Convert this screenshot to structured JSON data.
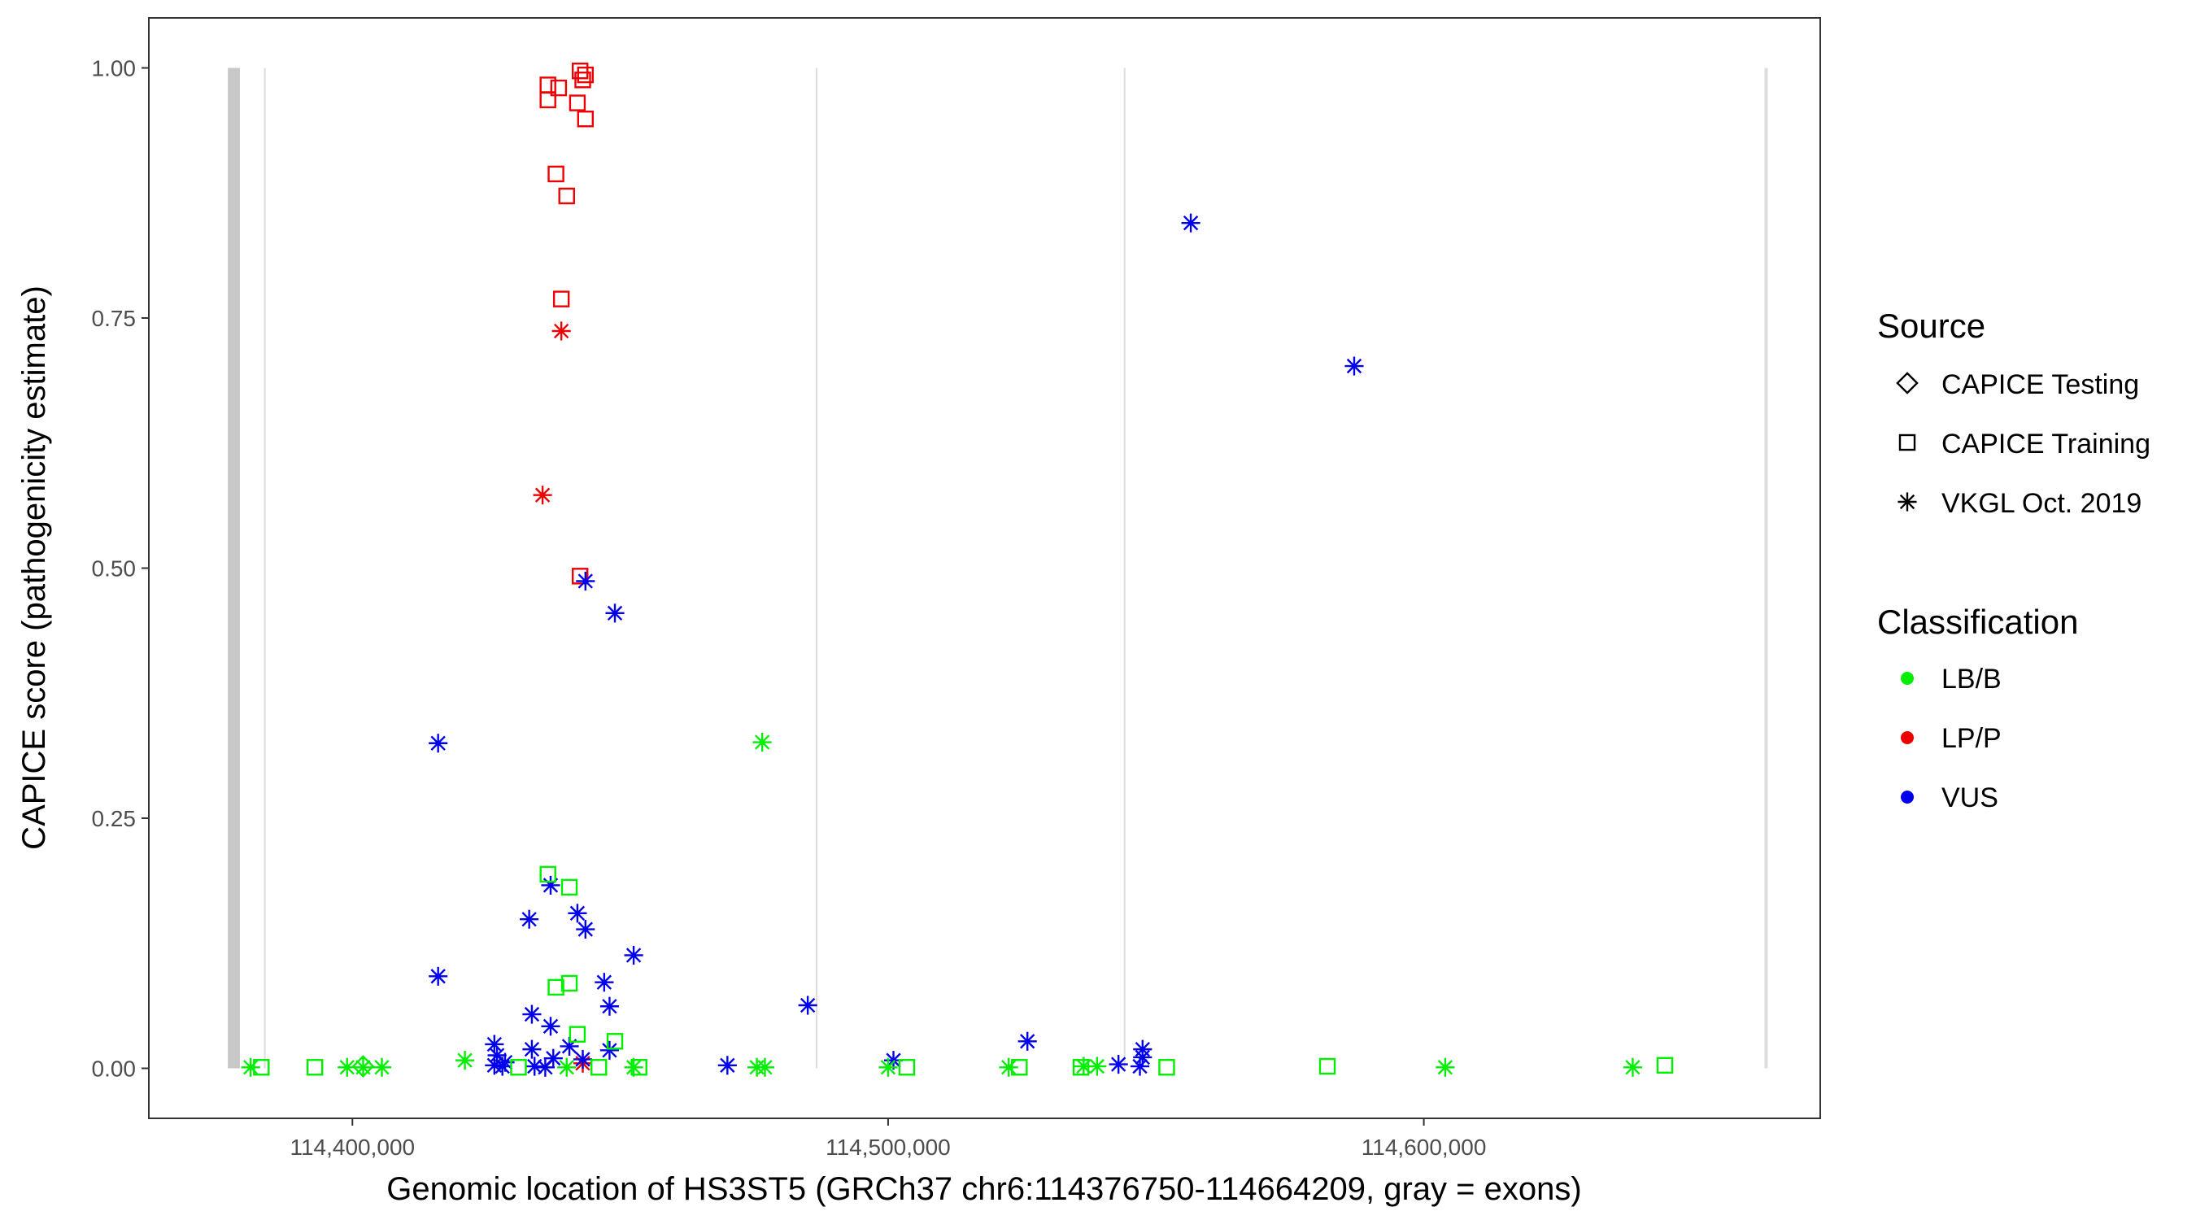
{
  "chart_data": {
    "type": "scatter",
    "xlabel": "Genomic location of HS3ST5 (GRCh37 chr6:114376750-114664209, gray = exons)",
    "ylabel": "CAPICE score (pathogenicity estimate)",
    "xlim": [
      114362000,
      114674000
    ],
    "ylim": [
      -0.05,
      1.05
    ],
    "x_ticks": [
      114400000,
      114500000,
      114600000
    ],
    "x_tick_labels": [
      "114,400,000",
      "114,500,000",
      "114,600,000"
    ],
    "y_ticks": [
      0.0,
      0.25,
      0.5,
      0.75,
      1.0
    ],
    "y_tick_labels": [
      "0.00",
      "0.25",
      "0.50",
      "0.75",
      "1.00"
    ],
    "grid": false,
    "legend_position": "right",
    "exons": [
      [
        114376750,
        114379000
      ],
      [
        114383500,
        114383800
      ],
      [
        114486500,
        114486800
      ],
      [
        114544000,
        114544300
      ],
      [
        114663600,
        114664209
      ]
    ],
    "legend": {
      "source_title": "Source",
      "source_items": [
        {
          "label": "CAPICE Testing",
          "shape": "diamond"
        },
        {
          "label": "CAPICE Training",
          "shape": "square"
        },
        {
          "label": "VKGL Oct. 2019",
          "shape": "star"
        }
      ],
      "class_title": "Classification",
      "class_items": [
        {
          "label": "LB/B",
          "color": "#00ee00"
        },
        {
          "label": "LP/P",
          "color": "#ee0000"
        },
        {
          "label": "VUS",
          "color": "#0000ee"
        }
      ]
    },
    "colors": {
      "LB/B": "#00ee00",
      "LP/P": "#ee0000",
      "VUS": "#0000ee"
    },
    "points": [
      {
        "x": 114436500,
        "y": 0.983,
        "source": "square",
        "cls": "LP/P"
      },
      {
        "x": 114438500,
        "y": 0.98,
        "source": "square",
        "cls": "LP/P"
      },
      {
        "x": 114436500,
        "y": 0.968,
        "source": "square",
        "cls": "LP/P"
      },
      {
        "x": 114442500,
        "y": 0.997,
        "source": "square",
        "cls": "LP/P"
      },
      {
        "x": 114443500,
        "y": 0.993,
        "source": "square",
        "cls": "LP/P"
      },
      {
        "x": 114443000,
        "y": 0.988,
        "source": "square",
        "cls": "LP/P"
      },
      {
        "x": 114442000,
        "y": 0.965,
        "source": "square",
        "cls": "LP/P"
      },
      {
        "x": 114443500,
        "y": 0.949,
        "source": "square",
        "cls": "LP/P"
      },
      {
        "x": 114438000,
        "y": 0.894,
        "source": "square",
        "cls": "LP/P"
      },
      {
        "x": 114440000,
        "y": 0.872,
        "source": "square",
        "cls": "LP/P"
      },
      {
        "x": 114439000,
        "y": 0.769,
        "source": "square",
        "cls": "LP/P"
      },
      {
        "x": 114442500,
        "y": 0.492,
        "source": "square",
        "cls": "LP/P"
      },
      {
        "x": 114439000,
        "y": 0.737,
        "source": "star",
        "cls": "LP/P"
      },
      {
        "x": 114435500,
        "y": 0.573,
        "source": "star",
        "cls": "LP/P"
      },
      {
        "x": 114443000,
        "y": 0.005,
        "source": "star",
        "cls": "LP/P"
      },
      {
        "x": 114556500,
        "y": 0.845,
        "source": "star",
        "cls": "VUS"
      },
      {
        "x": 114587000,
        "y": 0.702,
        "source": "star",
        "cls": "VUS"
      },
      {
        "x": 114443500,
        "y": 0.487,
        "source": "star",
        "cls": "VUS"
      },
      {
        "x": 114449000,
        "y": 0.455,
        "source": "star",
        "cls": "VUS"
      },
      {
        "x": 114416000,
        "y": 0.325,
        "source": "star",
        "cls": "VUS"
      },
      {
        "x": 114437000,
        "y": 0.183,
        "source": "star",
        "cls": "VUS"
      },
      {
        "x": 114442000,
        "y": 0.155,
        "source": "star",
        "cls": "VUS"
      },
      {
        "x": 114433000,
        "y": 0.149,
        "source": "star",
        "cls": "VUS"
      },
      {
        "x": 114443500,
        "y": 0.139,
        "source": "star",
        "cls": "VUS"
      },
      {
        "x": 114452500,
        "y": 0.113,
        "source": "star",
        "cls": "VUS"
      },
      {
        "x": 114416000,
        "y": 0.092,
        "source": "star",
        "cls": "VUS"
      },
      {
        "x": 114447000,
        "y": 0.086,
        "source": "star",
        "cls": "VUS"
      },
      {
        "x": 114485000,
        "y": 0.063,
        "source": "star",
        "cls": "VUS"
      },
      {
        "x": 114448000,
        "y": 0.062,
        "source": "star",
        "cls": "VUS"
      },
      {
        "x": 114433500,
        "y": 0.054,
        "source": "star",
        "cls": "VUS"
      },
      {
        "x": 114437000,
        "y": 0.042,
        "source": "star",
        "cls": "VUS"
      },
      {
        "x": 114426500,
        "y": 0.024,
        "source": "star",
        "cls": "VUS"
      },
      {
        "x": 114526000,
        "y": 0.027,
        "source": "star",
        "cls": "VUS"
      },
      {
        "x": 114440500,
        "y": 0.022,
        "source": "star",
        "cls": "VUS"
      },
      {
        "x": 114433500,
        "y": 0.019,
        "source": "star",
        "cls": "VUS"
      },
      {
        "x": 114547500,
        "y": 0.019,
        "source": "star",
        "cls": "VUS"
      },
      {
        "x": 114448000,
        "y": 0.018,
        "source": "star",
        "cls": "VUS"
      },
      {
        "x": 114427000,
        "y": 0.013,
        "source": "star",
        "cls": "VUS"
      },
      {
        "x": 114547500,
        "y": 0.011,
        "source": "star",
        "cls": "VUS"
      },
      {
        "x": 114437500,
        "y": 0.01,
        "source": "star",
        "cls": "VUS"
      },
      {
        "x": 114443000,
        "y": 0.009,
        "source": "star",
        "cls": "VUS"
      },
      {
        "x": 114501000,
        "y": 0.008,
        "source": "star",
        "cls": "VUS"
      },
      {
        "x": 114428500,
        "y": 0.006,
        "source": "star",
        "cls": "VUS"
      },
      {
        "x": 114543000,
        "y": 0.004,
        "source": "star",
        "cls": "VUS"
      },
      {
        "x": 114426500,
        "y": 0.003,
        "source": "star",
        "cls": "VUS"
      },
      {
        "x": 114470000,
        "y": 0.003,
        "source": "star",
        "cls": "VUS"
      },
      {
        "x": 114428000,
        "y": 0.002,
        "source": "star",
        "cls": "VUS"
      },
      {
        "x": 114434000,
        "y": 0.002,
        "source": "star",
        "cls": "VUS"
      },
      {
        "x": 114547000,
        "y": 0.002,
        "source": "star",
        "cls": "VUS"
      },
      {
        "x": 114436000,
        "y": 0.001,
        "source": "star",
        "cls": "VUS"
      },
      {
        "x": 114476500,
        "y": 0.326,
        "source": "star",
        "cls": "LB/B"
      },
      {
        "x": 114421000,
        "y": 0.008,
        "source": "star",
        "cls": "LB/B"
      },
      {
        "x": 114381000,
        "y": 0.001,
        "source": "star",
        "cls": "LB/B"
      },
      {
        "x": 114399000,
        "y": 0.001,
        "source": "star",
        "cls": "LB/B"
      },
      {
        "x": 114402000,
        "y": 0.001,
        "source": "star",
        "cls": "LB/B"
      },
      {
        "x": 114405500,
        "y": 0.001,
        "source": "star",
        "cls": "LB/B"
      },
      {
        "x": 114440000,
        "y": 0.001,
        "source": "star",
        "cls": "LB/B"
      },
      {
        "x": 114452500,
        "y": 0.001,
        "source": "star",
        "cls": "LB/B"
      },
      {
        "x": 114475500,
        "y": 0.001,
        "source": "star",
        "cls": "LB/B"
      },
      {
        "x": 114477000,
        "y": 0.001,
        "source": "star",
        "cls": "LB/B"
      },
      {
        "x": 114500000,
        "y": 0.001,
        "source": "star",
        "cls": "LB/B"
      },
      {
        "x": 114522500,
        "y": 0.001,
        "source": "star",
        "cls": "LB/B"
      },
      {
        "x": 114536500,
        "y": 0.002,
        "source": "star",
        "cls": "LB/B"
      },
      {
        "x": 114539000,
        "y": 0.002,
        "source": "star",
        "cls": "LB/B"
      },
      {
        "x": 114604000,
        "y": 0.001,
        "source": "star",
        "cls": "LB/B"
      },
      {
        "x": 114639000,
        "y": 0.001,
        "source": "star",
        "cls": "LB/B"
      },
      {
        "x": 114436500,
        "y": 0.194,
        "source": "square",
        "cls": "LB/B"
      },
      {
        "x": 114440500,
        "y": 0.181,
        "source": "square",
        "cls": "LB/B"
      },
      {
        "x": 114440500,
        "y": 0.085,
        "source": "square",
        "cls": "LB/B"
      },
      {
        "x": 114438000,
        "y": 0.081,
        "source": "square",
        "cls": "LB/B"
      },
      {
        "x": 114442000,
        "y": 0.034,
        "source": "square",
        "cls": "LB/B"
      },
      {
        "x": 114449000,
        "y": 0.027,
        "source": "square",
        "cls": "LB/B"
      },
      {
        "x": 114383000,
        "y": 0.001,
        "source": "square",
        "cls": "LB/B"
      },
      {
        "x": 114393000,
        "y": 0.001,
        "source": "square",
        "cls": "LB/B"
      },
      {
        "x": 114431000,
        "y": 0.001,
        "source": "square",
        "cls": "LB/B"
      },
      {
        "x": 114446000,
        "y": 0.001,
        "source": "square",
        "cls": "LB/B"
      },
      {
        "x": 114453500,
        "y": 0.001,
        "source": "square",
        "cls": "LB/B"
      },
      {
        "x": 114503500,
        "y": 0.001,
        "source": "square",
        "cls": "LB/B"
      },
      {
        "x": 114524500,
        "y": 0.001,
        "source": "square",
        "cls": "LB/B"
      },
      {
        "x": 114536000,
        "y": 0.001,
        "source": "square",
        "cls": "LB/B"
      },
      {
        "x": 114552000,
        "y": 0.001,
        "source": "square",
        "cls": "LB/B"
      },
      {
        "x": 114582000,
        "y": 0.002,
        "source": "square",
        "cls": "LB/B"
      },
      {
        "x": 114645000,
        "y": 0.003,
        "source": "square",
        "cls": "LB/B"
      },
      {
        "x": 114402000,
        "y": 0.002,
        "source": "diamond",
        "cls": "LB/B"
      }
    ]
  }
}
